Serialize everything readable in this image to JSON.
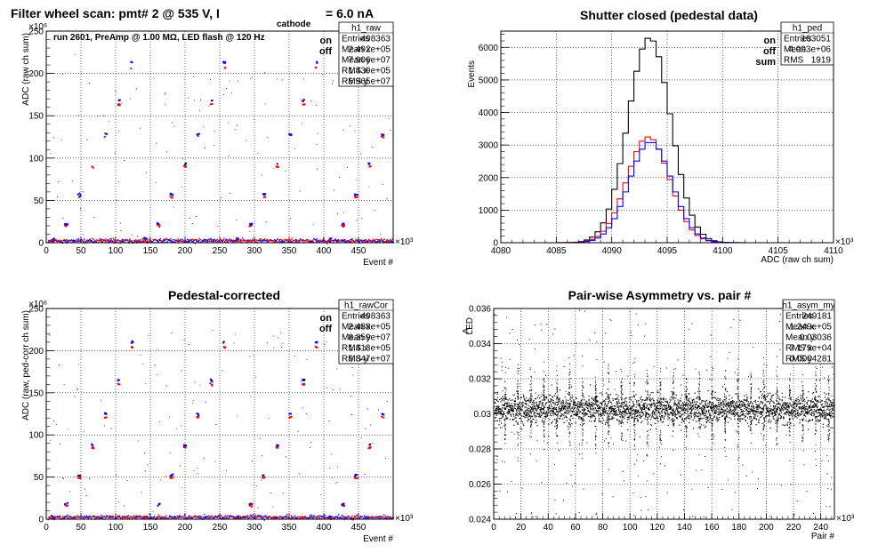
{
  "chart_data": [
    {
      "type": "scatter",
      "title": "Filter wheel scan: pmt#   2 @   535 V, I",
      "title_sub": "cathode",
      "title_tail": "= 6.0 nA",
      "annotation": "run 2601, PreAmp @ 1.00 MΩ, LED flash @  120 Hz",
      "xlabel": "Event #",
      "ylabel": "ADC (raw ch sum)",
      "xlim": [
        0,
        500
      ],
      "ylim": [
        0,
        250
      ],
      "x_exponent": "×10³",
      "y_exponent": "×10⁶",
      "xticks": [
        "0",
        "50",
        "100",
        "150",
        "200",
        "250",
        "300",
        "350",
        "400",
        "450"
      ],
      "yticks": [
        "0",
        "50",
        "100",
        "150",
        "200",
        "250"
      ],
      "grid": true,
      "legend": [
        {
          "name": "on",
          "color": "#0000ff"
        },
        {
          "name": "off",
          "color": "#ff0000"
        }
      ],
      "stats": {
        "name": "h1_raw",
        "rows": [
          [
            "Entries",
            "498363"
          ],
          [
            "Mean x",
            "2.492e+05"
          ],
          [
            "Mean y",
            "7.906e+07"
          ],
          [
            "RMS x",
            "1.439e+05"
          ],
          [
            "RMS y",
            "6.965e+07"
          ]
        ]
      },
      "levels_on": [
        5,
        22,
        57,
        93,
        128,
        168,
        213
      ],
      "levels_off": [
        3,
        20,
        54,
        90,
        125,
        163,
        207
      ],
      "period": 19
    },
    {
      "type": "line",
      "title": "Shutter closed (pedestal data)",
      "xlabel": "ADC (raw ch sum)",
      "ylabel": "Events",
      "xlim": [
        4080,
        4110
      ],
      "ylim": [
        0,
        6500
      ],
      "x_exponent": "×10³",
      "xticks": [
        "4080",
        "4085",
        "4090",
        "4095",
        "4100",
        "4105",
        "4110"
      ],
      "yticks": [
        "0",
        "1000",
        "2000",
        "3000",
        "4000",
        "5000",
        "6000"
      ],
      "grid": true,
      "legend": [
        {
          "name": "on",
          "color": "#0000ff"
        },
        {
          "name": "off",
          "color": "#ff0000"
        },
        {
          "name": "sum",
          "color": "#000000"
        }
      ],
      "stats": {
        "name": "h1_ped",
        "rows": [
          [
            "Entries",
            "103051"
          ],
          [
            "Mean",
            "4.093e+06"
          ],
          [
            "RMS",
            "1919"
          ]
        ]
      },
      "series": [
        {
          "name": "sum",
          "color": "#000000",
          "peak": 6300,
          "mean": 4093.4,
          "sigma": 1.92
        },
        {
          "name": "off",
          "color": "#ff0000",
          "peak": 3250,
          "mean": 4093.3,
          "sigma": 1.92
        },
        {
          "name": "on",
          "color": "#0000ff",
          "peak": 3100,
          "mean": 4093.5,
          "sigma": 1.92
        }
      ]
    },
    {
      "type": "scatter",
      "title": "Pedestal-corrected",
      "xlabel": "Event #",
      "ylabel": "ADC (raw, ped-corr ch sum)",
      "xlim": [
        0,
        500
      ],
      "ylim": [
        0,
        250
      ],
      "x_exponent": "×10³",
      "y_exponent": "×10⁶",
      "xticks": [
        "0",
        "50",
        "100",
        "150",
        "200",
        "250",
        "300",
        "350",
        "400",
        "450"
      ],
      "yticks": [
        "0",
        "50",
        "100",
        "150",
        "200",
        "250"
      ],
      "grid": true,
      "legend": [
        {
          "name": "on",
          "color": "#0000ff"
        },
        {
          "name": "off",
          "color": "#ff0000"
        }
      ],
      "stats": {
        "name": "h1_rawCor",
        "rows": [
          [
            "Entries",
            "498363"
          ],
          [
            "Mean x",
            "2.488e+05"
          ],
          [
            "Mean y",
            "8.359e+07"
          ],
          [
            "RMS x",
            "1.413e+05"
          ],
          [
            "RMS y",
            "6.847e+07"
          ]
        ]
      },
      "levels_on": [
        3,
        18,
        52,
        88,
        125,
        165,
        210
      ],
      "levels_off": [
        1,
        16,
        49,
        85,
        121,
        160,
        204
      ],
      "period": 19
    },
    {
      "type": "scatter",
      "title": "Pair-wise Asymmetry vs. pair #",
      "xlabel": "Pair #",
      "ylabel": "A",
      "ylabel_sub": "LED",
      "xlim": [
        0,
        250
      ],
      "ylim": [
        0.024,
        0.036
      ],
      "x_exponent": "×10³",
      "xticks": [
        "0",
        "20",
        "40",
        "60",
        "80",
        "100",
        "120",
        "140",
        "160",
        "180",
        "200",
        "220",
        "240"
      ],
      "yticks": [
        "0.024",
        "0.026",
        "0.028",
        "0.03",
        "0.032",
        "0.034",
        "0.036"
      ],
      "grid": true,
      "stats": {
        "name": "h1_asym_my",
        "rows": [
          [
            "Entries",
            "249181"
          ],
          [
            "Mean x",
            "1.249e+05"
          ],
          [
            "Mean y",
            "0.03036"
          ],
          [
            "RMS x",
            "7.179e+04"
          ],
          [
            "RMS y",
            "0.0004281"
          ]
        ]
      },
      "band_center": 0.0303,
      "band_halfwidth": 0.0007,
      "spike_period": 9.5
    }
  ]
}
